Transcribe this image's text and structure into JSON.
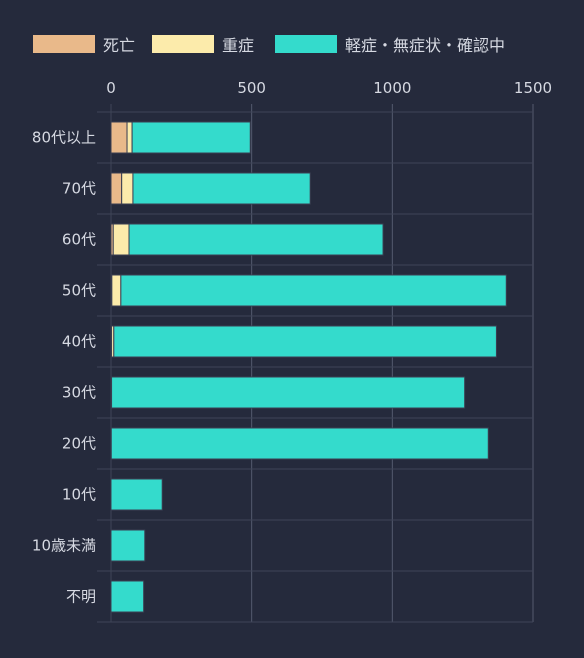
{
  "chart_data": {
    "type": "bar",
    "orientation": "horizontal",
    "stacked": true,
    "categories": [
      "80代以上",
      "70代",
      "60代",
      "50代",
      "40代",
      "30代",
      "20代",
      "10代",
      "10歳未満",
      "不明"
    ],
    "series": [
      {
        "name": "死亡",
        "color": "#e9b98a",
        "values": [
          57,
          38,
          8,
          3,
          2,
          0,
          0,
          0,
          0,
          0
        ]
      },
      {
        "name": "重症",
        "color": "#fcebab",
        "values": [
          18,
          40,
          56,
          32,
          8,
          2,
          1,
          0,
          0,
          0
        ]
      },
      {
        "name": "軽症・無症状・確認中",
        "color": "#34dbcc",
        "values": [
          420,
          630,
          903,
          1370,
          1360,
          1255,
          1340,
          182,
          120,
          116
        ]
      }
    ],
    "xlim": [
      0,
      1500
    ],
    "xticks": [
      "0",
      "500",
      "1000",
      "1500"
    ],
    "xaxis_position": "top",
    "grid": true,
    "legend_position": "top"
  }
}
